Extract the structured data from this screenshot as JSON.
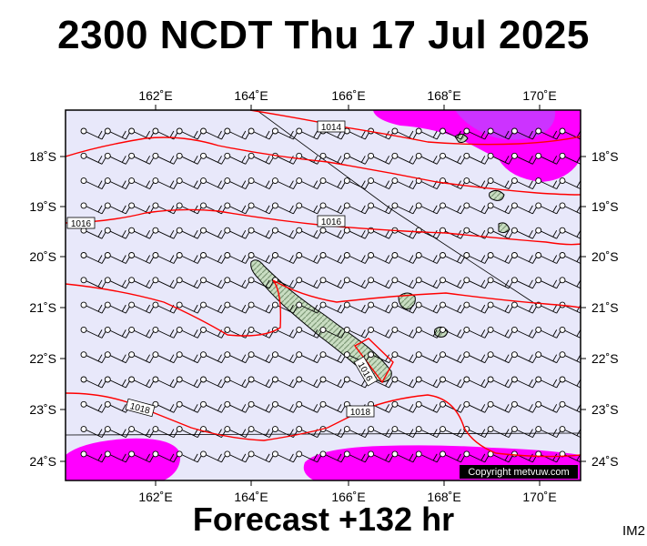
{
  "title": "2300 NCDT Thu 17 Jul 2025",
  "footer": "Forecast +132 hr",
  "corner_label": "IM2",
  "copyright": "Copyright metvuw.com",
  "lon_labels": [
    "162˚E",
    "164˚E",
    "166˚E",
    "168˚E",
    "170˚E"
  ],
  "lat_labels": [
    "18˚S",
    "19˚S",
    "20˚S",
    "21˚S",
    "22˚S",
    "23˚S",
    "24˚S"
  ],
  "isobar_labels": [
    "1014",
    "1016",
    "1016",
    "1016",
    "1018",
    "1018"
  ],
  "colors": {
    "ocean": "#e8e8fa",
    "isobar": "#ff0000",
    "rain_light": "#ff00ff",
    "rain_heavy": "#cc33ff",
    "land": "#b8d4b0"
  }
}
